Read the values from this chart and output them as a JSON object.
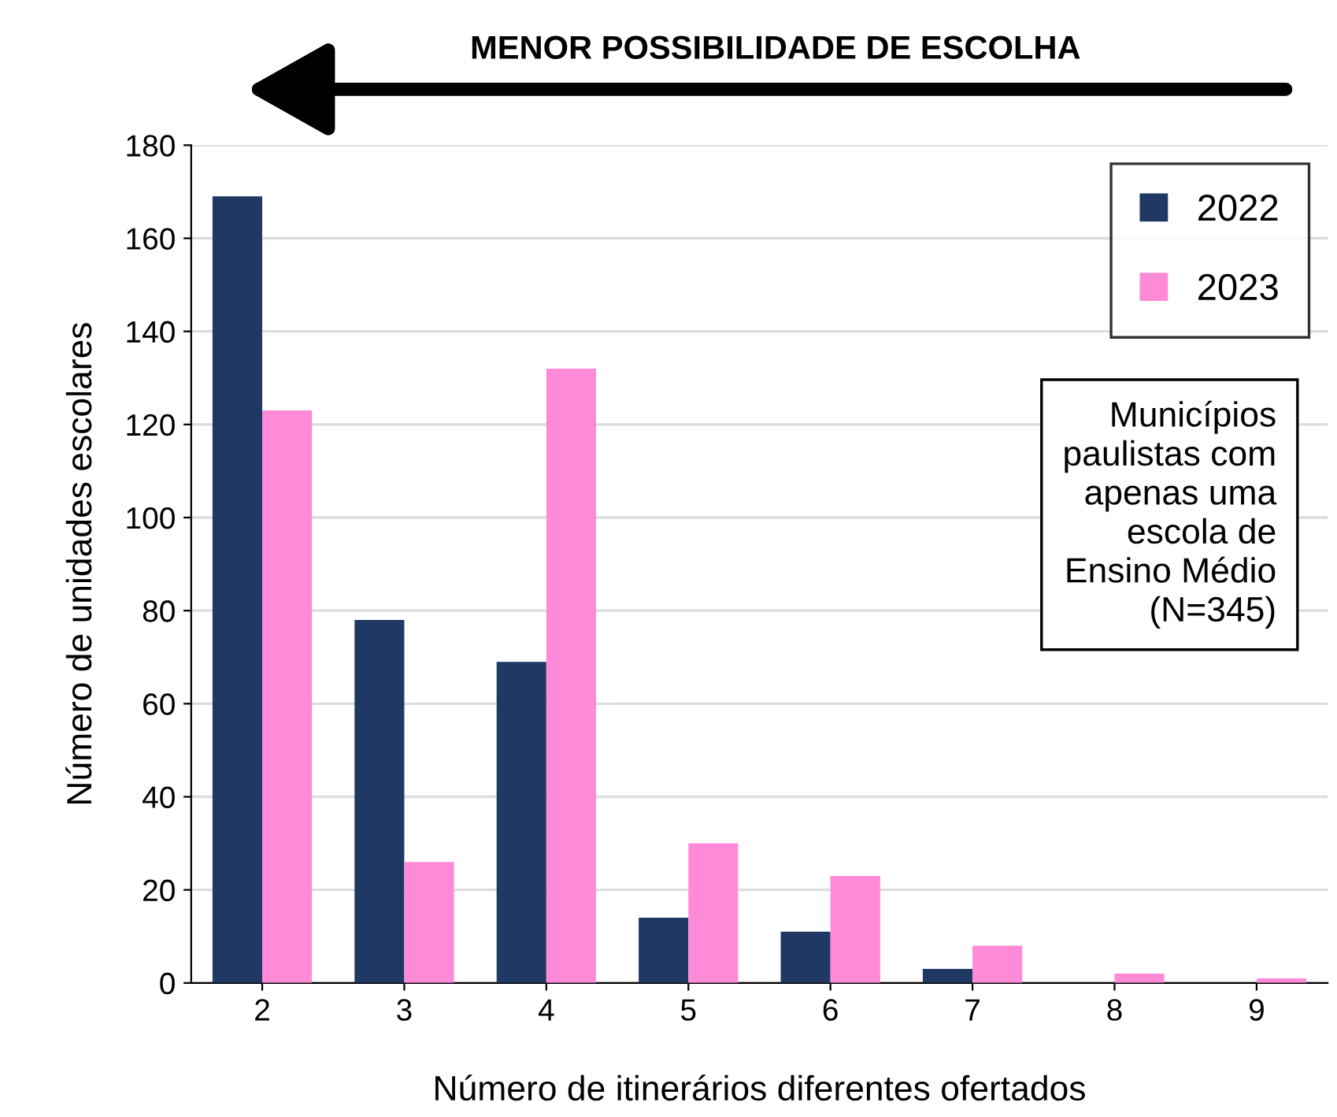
{
  "chart_data": {
    "type": "bar",
    "xlabel": "Número de itinerários diferentes ofertados",
    "ylabel": "Número de unidades escolares",
    "categories": [
      "2",
      "3",
      "4",
      "5",
      "6",
      "7",
      "8",
      "9"
    ],
    "series": [
      {
        "name": "2022",
        "color": "#1f3864",
        "values": [
          169,
          78,
          69,
          14,
          11,
          3,
          0,
          0
        ]
      },
      {
        "name": "2023",
        "color": "#ff8ad8",
        "values": [
          123,
          26,
          132,
          30,
          23,
          8,
          2,
          1
        ]
      }
    ],
    "ylim": [
      0,
      180
    ],
    "yticks": [
      0,
      20,
      40,
      60,
      80,
      100,
      120,
      140,
      160,
      180
    ],
    "grid": "y",
    "legend": "top right",
    "annotations": [
      "MENOR POSSIBILIDADE DE ESCOLHA",
      "Municípios\npaulistas com\napenas uma\nescola de\nEnsino Médio\n(N=345)"
    ]
  }
}
